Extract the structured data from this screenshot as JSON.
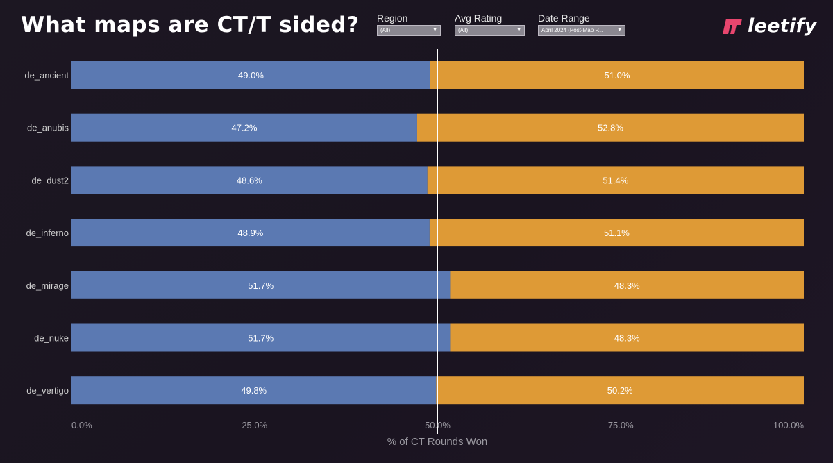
{
  "title": "What maps are CT/T sided?",
  "filters": [
    {
      "label": "Region",
      "value": "(All)"
    },
    {
      "label": "Avg Rating",
      "value": "(All)"
    },
    {
      "label": "Date Range",
      "value": "April 2024 (Post-Map P..."
    }
  ],
  "logo": {
    "text": "leetify",
    "icon": "leetify-logo-icon",
    "color": "#e8466e"
  },
  "colors": {
    "ct": "#5b79b2",
    "t": "#de9a36",
    "reference_line": "#ffffff"
  },
  "chart_data": {
    "type": "bar",
    "orientation": "horizontal",
    "stacked": true,
    "title": "What maps are CT/T sided?",
    "categories": [
      "de_ancient",
      "de_anubis",
      "de_dust2",
      "de_inferno",
      "de_mirage",
      "de_nuke",
      "de_vertigo"
    ],
    "series": [
      {
        "name": "CT",
        "values": [
          49.0,
          47.2,
          48.6,
          48.9,
          51.7,
          51.7,
          49.8
        ],
        "labels": [
          "49.0%",
          "47.2%",
          "48.6%",
          "48.9%",
          "51.7%",
          "51.7%",
          "49.8%"
        ]
      },
      {
        "name": "T",
        "values": [
          51.0,
          52.8,
          51.4,
          51.1,
          48.3,
          48.3,
          50.2
        ],
        "labels": [
          "51.0%",
          "52.8%",
          "51.4%",
          "51.1%",
          "48.3%",
          "48.3%",
          "50.2%"
        ]
      }
    ],
    "xlabel": "% of CT Rounds Won",
    "xlim": [
      0,
      100
    ],
    "xticks": [
      0,
      25,
      50,
      75,
      100
    ],
    "xtick_labels": [
      "0.0%",
      "25.0%",
      "50.0%",
      "75.0%",
      "100.0%"
    ],
    "reference_line": 50,
    "grid": false
  }
}
